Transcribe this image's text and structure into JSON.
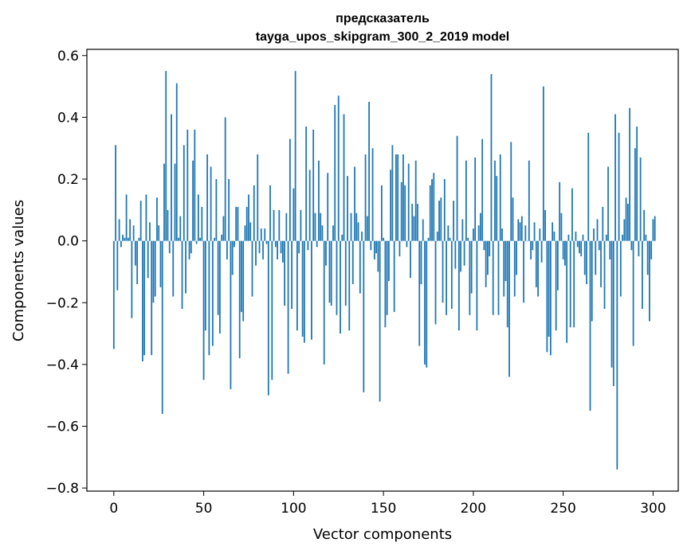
{
  "chart_data": {
    "type": "bar",
    "title": "предсказатель",
    "subtitle": "tayga_upos_skipgram_300_2_2019 model",
    "xlabel": "Vector components",
    "ylabel": "Components values",
    "xlim": [
      -15,
      314
    ],
    "ylim": [
      -0.81,
      0.62
    ],
    "xticks": [
      0,
      50,
      100,
      150,
      200,
      250,
      300
    ],
    "xtick_labels": [
      "0",
      "50",
      "100",
      "150",
      "200",
      "250",
      "300"
    ],
    "yticks": [
      -0.8,
      -0.6,
      -0.4,
      -0.2,
      0.0,
      0.2,
      0.4,
      0.6
    ],
    "ytick_labels": [
      "−0.8",
      "−0.6",
      "−0.4",
      "−0.2",
      "0.0",
      "0.2",
      "0.4",
      "0.6"
    ],
    "grid": false,
    "bar_color": "#1f77b4",
    "values": [
      -0.35,
      0.31,
      -0.16,
      0.07,
      -0.02,
      0.02,
      0.01,
      0.15,
      0.01,
      0.07,
      -0.25,
      0.05,
      -0.08,
      -0.14,
      0.01,
      0.13,
      -0.39,
      -0.37,
      0.15,
      -0.12,
      0.06,
      -0.37,
      -0.2,
      -0.18,
      0.14,
      0.05,
      -0.15,
      -0.56,
      0.25,
      0.55,
      0.1,
      -0.04,
      0.41,
      -0.18,
      0.25,
      0.51,
      0.01,
      0.08,
      -0.22,
      0.31,
      -0.17,
      0.36,
      -0.06,
      -0.04,
      0.26,
      0.36,
      -0.01,
      0.15,
      0.01,
      0.11,
      -0.45,
      -0.29,
      0.28,
      -0.37,
      0.24,
      -0.34,
      0.01,
      0.2,
      -0.24,
      -0.3,
      0.02,
      0.08,
      0.4,
      -0.06,
      0.2,
      -0.48,
      -0.11,
      -0.02,
      0.11,
      0.11,
      -0.38,
      -0.23,
      -0.26,
      0.05,
      0.11,
      0.15,
      0.06,
      -0.18,
      0.18,
      -0.08,
      0.28,
      -0.04,
      0.04,
      -0.06,
      0.04,
      -0.01,
      -0.5,
      0.18,
      -0.45,
      0.1,
      -0.02,
      -0.06,
      0.1,
      -0.04,
      -0.07,
      -0.21,
      0.09,
      -0.43,
      0.33,
      -0.22,
      0.17,
      0.55,
      -0.29,
      -0.04,
      0.1,
      -0.31,
      -0.33,
      0.37,
      -0.03,
      0.23,
      -0.32,
      0.36,
      0.09,
      -0.02,
      0.26,
      0.09,
      0.05,
      -0.4,
      -0.08,
      0.22,
      -0.2,
      -0.21,
      0.05,
      0.44,
      -0.24,
      0.47,
      -0.3,
      0.02,
      0.41,
      -0.21,
      0.21,
      -0.29,
      0.09,
      -0.14,
      0.24,
      0.09,
      0.06,
      -0.17,
      0.03,
      -0.49,
      0.28,
      0.08,
      0.45,
      -0.03,
      0.3,
      -0.06,
      -0.04,
      -0.1,
      -0.52,
      0.18,
      0.01,
      -0.28,
      -0.24,
      -0.13,
      0.23,
      0.31,
      -0.23,
      0.28,
      0.28,
      -0.05,
      0.19,
      0.28,
      0.18,
      -0.02,
      0.25,
      -0.12,
      0.12,
      0.08,
      0.26,
      0.12,
      -0.34,
      -0.14,
      0.07,
      -0.4,
      -0.41,
      0.01,
      0.18,
      0.2,
      0.22,
      -0.27,
      0.03,
      0.13,
      0.14,
      -0.2,
      0.2,
      -0.24,
      0.05,
      0.01,
      -0.22,
      0.13,
      -0.09,
      0.34,
      -0.29,
      -0.1,
      0.07,
      -0.08,
      0.26,
      0.01,
      -0.24,
      -0.17,
      0.04,
      0.27,
      -0.29,
      0.05,
      0.09,
      0.33,
      -0.03,
      -0.15,
      -0.11,
      -0.05,
      0.54,
      -0.24,
      0.26,
      0.21,
      -0.24,
      0.28,
      0.04,
      -0.18,
      -0.13,
      -0.28,
      -0.44,
      0.32,
      0.14,
      -0.18,
      -0.11,
      0.07,
      0.06,
      0.08,
      -0.2,
      0.05,
      0.0,
      0.26,
      -0.06,
      -0.03,
      0.06,
      -0.15,
      -0.18,
      0.04,
      -0.07,
      0.5,
      0.1,
      -0.36,
      -0.31,
      -0.37,
      0.06,
      0.03,
      -0.29,
      -0.16,
      0.19,
      0.09,
      -0.06,
      -0.08,
      -0.33,
      0.02,
      -0.28,
      0.17,
      -0.28,
      0.03,
      -0.02,
      -0.04,
      -0.05,
      0.02,
      -0.11,
      -0.14,
      0.35,
      -0.55,
      -0.26,
      0.04,
      -0.11,
      0.07,
      -0.03,
      -0.15,
      0.11,
      -0.22,
      0.02,
      0.24,
      -0.06,
      -0.41,
      -0.47,
      0.41,
      -0.74,
      0.35,
      -0.18,
      0.02,
      0.07,
      0.14,
      0.12,
      0.43,
      -0.03,
      -0.34,
      0.3,
      0.37,
      -0.05,
      0.27,
      -0.22,
      0.1,
      0.02,
      -0.11,
      -0.26,
      -0.06,
      0.07,
      0.08
    ]
  }
}
